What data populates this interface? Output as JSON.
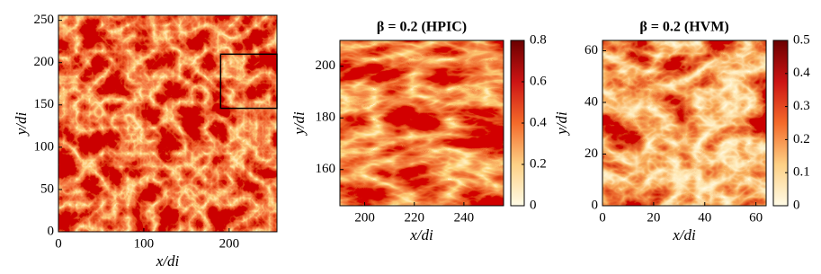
{
  "chart_data": [
    {
      "type": "heatmap",
      "xlabel": "x/di",
      "ylabel": "y/di",
      "xlim": [
        0,
        256
      ],
      "xticks": [
        0,
        100,
        200
      ],
      "ylim": [
        0,
        256
      ],
      "yticks": [
        0,
        50,
        100,
        150,
        200,
        250
      ],
      "inset_box": {
        "xlim": [
          190,
          256
        ],
        "ylim": [
          146,
          210
        ]
      }
    },
    {
      "type": "heatmap",
      "title": "β = 0.2 (HPIC)",
      "xlabel": "x/di",
      "ylabel": "y/di",
      "xlim": [
        190,
        256
      ],
      "xticks": [
        200,
        220,
        240
      ],
      "ylim": [
        146,
        210
      ],
      "yticks": [
        160,
        180,
        200
      ],
      "clim": [
        0,
        0.8
      ],
      "cticks": [
        0,
        0.2,
        0.4,
        0.6,
        0.8
      ]
    },
    {
      "type": "heatmap",
      "title": "β = 0.2 (HVM)",
      "xlabel": "x/di",
      "ylabel": "y/di",
      "xlim": [
        0,
        64
      ],
      "xticks": [
        0,
        20,
        40,
        60
      ],
      "ylim": [
        0,
        64
      ],
      "yticks": [
        0,
        20,
        40,
        60
      ],
      "clim": [
        0,
        0.5
      ],
      "cticks": [
        0,
        0.1,
        0.2,
        0.3,
        0.4,
        0.5
      ]
    }
  ]
}
